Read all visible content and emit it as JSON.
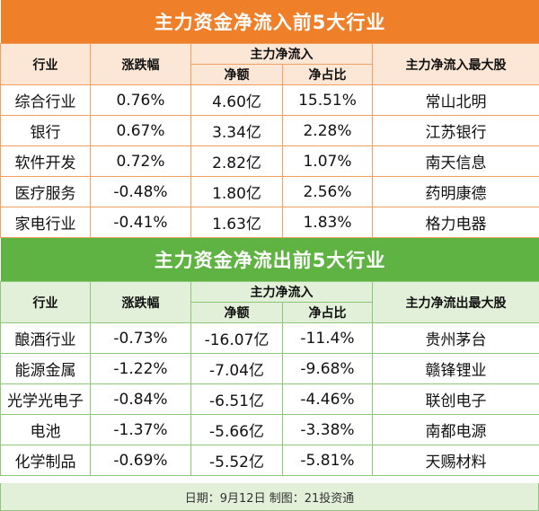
{
  "inflow": {
    "title": "主力资金净流入前5大行业",
    "headers": {
      "industry": "行业",
      "change": "涨跌幅",
      "main_net": "主力净流入",
      "amount": "净额",
      "ratio": "净占比",
      "top_stock": "主力净流入最大股"
    },
    "rows": [
      {
        "industry": "综合行业",
        "change": "0.76%",
        "amount": "4.60亿",
        "ratio": "15.51%",
        "stock": "常山北明"
      },
      {
        "industry": "银行",
        "change": "0.67%",
        "amount": "3.34亿",
        "ratio": "2.28%",
        "stock": "江苏银行"
      },
      {
        "industry": "软件开发",
        "change": "0.72%",
        "amount": "2.82亿",
        "ratio": "1.07%",
        "stock": "南天信息"
      },
      {
        "industry": "医疗服务",
        "change": "-0.48%",
        "amount": "1.80亿",
        "ratio": "2.56%",
        "stock": "药明康德"
      },
      {
        "industry": "家电行业",
        "change": "-0.41%",
        "amount": "1.63亿",
        "ratio": "1.83%",
        "stock": "格力电器"
      }
    ]
  },
  "outflow": {
    "title": "主力资金净流出前5大行业",
    "headers": {
      "industry": "行业",
      "change": "涨跌幅",
      "main_net": "主力净流入",
      "amount": "净额",
      "ratio": "净占比",
      "top_stock": "主力净流出最大股"
    },
    "rows": [
      {
        "industry": "酿酒行业",
        "change": "-0.73%",
        "amount": "-16.07亿",
        "ratio": "-11.4%",
        "stock": "贵州茅台"
      },
      {
        "industry": "能源金属",
        "change": "-1.22%",
        "amount": "-7.04亿",
        "ratio": "-9.68%",
        "stock": "赣锋锂业"
      },
      {
        "industry": "光学光电子",
        "change": "-0.84%",
        "amount": "-6.51亿",
        "ratio": "-4.46%",
        "stock": "联创电子"
      },
      {
        "industry": "电池",
        "change": "-1.37%",
        "amount": "-5.66亿",
        "ratio": "-3.38%",
        "stock": "南都电源"
      },
      {
        "industry": "化学制品",
        "change": "-0.69%",
        "amount": "-5.52亿",
        "ratio": "-5.81%",
        "stock": "天赐材料"
      }
    ]
  },
  "footer": "日期：9月12日 制图：21投资通",
  "colors": {
    "inflow_accent": "#f07f2a",
    "outflow_accent": "#5fb342"
  }
}
